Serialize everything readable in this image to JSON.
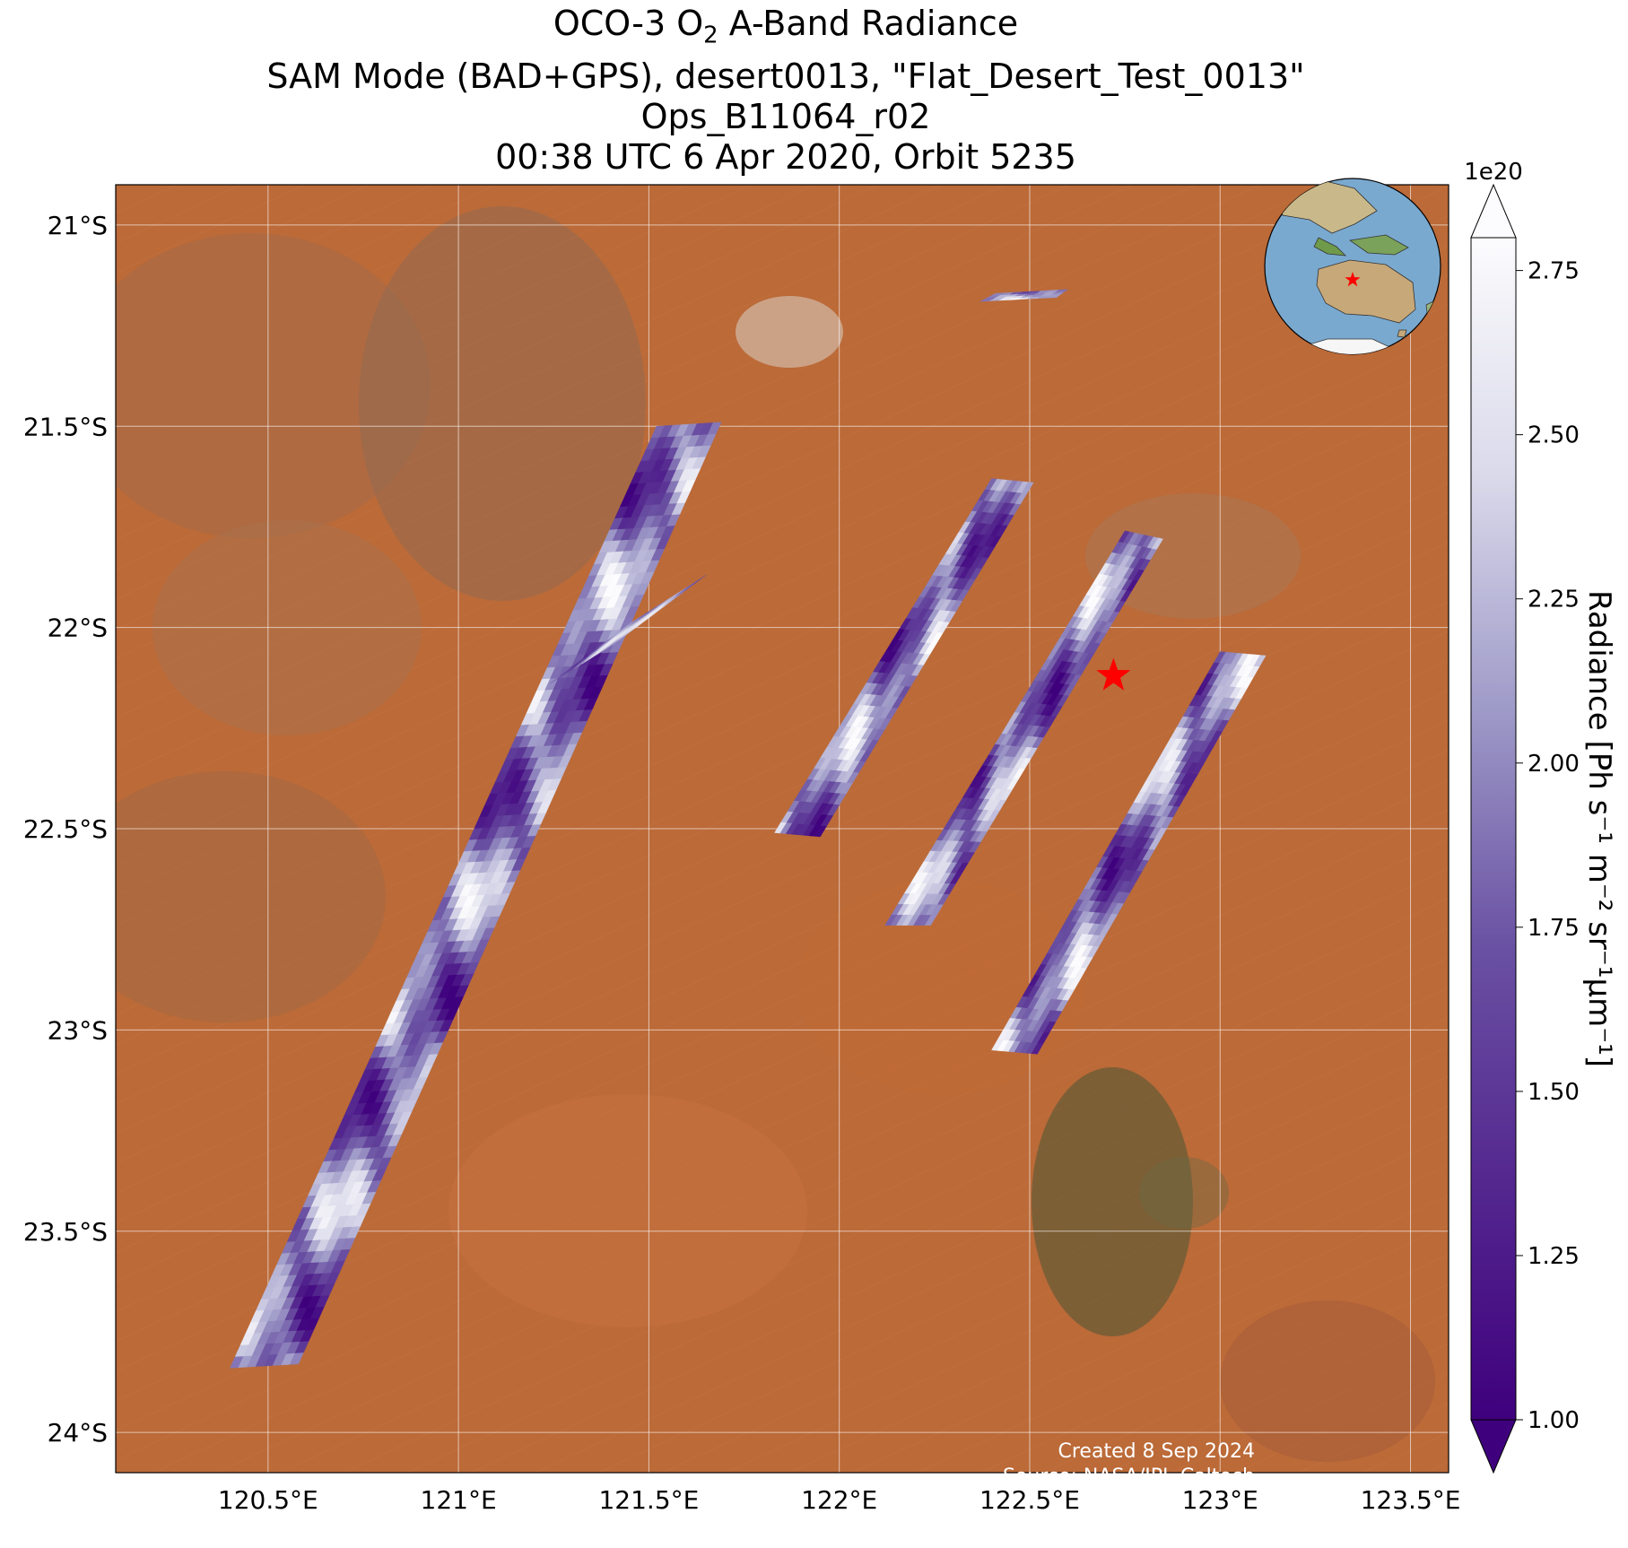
{
  "title": {
    "line1_prefix": "OCO-3 O",
    "line1_sub": "2",
    "line1_suffix": " A-Band Radiance",
    "line2": "SAM Mode (BAD+GPS), desert0013, \"Flat_Desert_Test_0013\"",
    "line3": "Ops_B11064_r02",
    "line4": "00:38 UTC 6 Apr 2020, Orbit 5235"
  },
  "map": {
    "extent": {
      "lon": [
        120.1,
        123.6
      ],
      "lat": [
        -24.1,
        -20.9
      ]
    },
    "lon_ticks": [
      "120.5°E",
      "121°E",
      "121.5°E",
      "122°E",
      "122.5°E",
      "123°E",
      "123.5°E"
    ],
    "lon_values": [
      120.5,
      121.0,
      121.5,
      122.0,
      122.5,
      123.0,
      123.5
    ],
    "lat_ticks": [
      "21°S",
      "21.5°S",
      "22°S",
      "22.5°S",
      "23°S",
      "23.5°S",
      "24°S"
    ],
    "lat_values": [
      -21.0,
      -21.5,
      -22.0,
      -22.5,
      -23.0,
      -23.5,
      -24.0
    ],
    "background": "satellite imagery (red desert, Western Australia)",
    "target": {
      "lon": 122.72,
      "lat": -22.12,
      "marker": "red-star-icon",
      "color": "#ff0000"
    },
    "inset": "orthographic globe centered on Australia with red star at target"
  },
  "chart_data": {
    "type": "heatmap",
    "variable": "Radiance",
    "units": "Ph s^-1 m^-2 sr^-1 µm^-1",
    "colormap": "Purples_r",
    "vmin": 1e+20,
    "vmax": 2.8e+20,
    "swaths": [
      {
        "name": "swath-1",
        "corners": [
          [
            120.4,
            -23.84
          ],
          [
            120.58,
            -23.83
          ],
          [
            121.69,
            -21.49
          ],
          [
            121.52,
            -21.5
          ]
        ]
      },
      {
        "name": "swath-2",
        "corners": [
          [
            121.83,
            -22.51
          ],
          [
            121.95,
            -22.52
          ],
          [
            122.51,
            -21.64
          ],
          [
            122.4,
            -21.63
          ]
        ]
      },
      {
        "name": "swath-3",
        "corners": [
          [
            122.12,
            -22.74
          ],
          [
            122.24,
            -22.74
          ],
          [
            122.85,
            -21.78
          ],
          [
            122.75,
            -21.76
          ]
        ]
      },
      {
        "name": "swath-4",
        "corners": [
          [
            122.4,
            -23.05
          ],
          [
            122.52,
            -23.06
          ],
          [
            123.12,
            -22.07
          ],
          [
            123.0,
            -22.06
          ]
        ]
      },
      {
        "name": "swath-5",
        "corners": [
          [
            121.24,
            -22.14
          ],
          [
            121.41,
            -22.04
          ],
          [
            121.65,
            -21.87
          ],
          [
            121.45,
            -21.99
          ]
        ]
      },
      {
        "name": "swath-6",
        "corners": [
          [
            122.37,
            -21.19
          ],
          [
            122.57,
            -21.18
          ],
          [
            122.6,
            -21.16
          ],
          [
            122.41,
            -21.17
          ]
        ]
      }
    ]
  },
  "colorbar": {
    "label": "Radiance [Ph s⁻¹ m⁻² sr⁻¹µm⁻¹]",
    "multiplier": "1e20",
    "ticks": [
      "1.00",
      "1.25",
      "1.50",
      "1.75",
      "2.00",
      "2.25",
      "2.50",
      "2.75"
    ],
    "tick_values": [
      1.0,
      1.25,
      1.5,
      1.75,
      2.0,
      2.25,
      2.5,
      2.75
    ],
    "range": [
      1.0,
      2.8
    ]
  },
  "credits": {
    "created": "Created 8 Sep 2024",
    "source": "Source: NASA/JPL-Caltech"
  },
  "colors": {
    "desert": "#bf6a36",
    "swath_dark": "#3f007d",
    "swath_light": "#fcfbfd",
    "star": "#ff0000",
    "ocean": "#7aa9cf"
  }
}
